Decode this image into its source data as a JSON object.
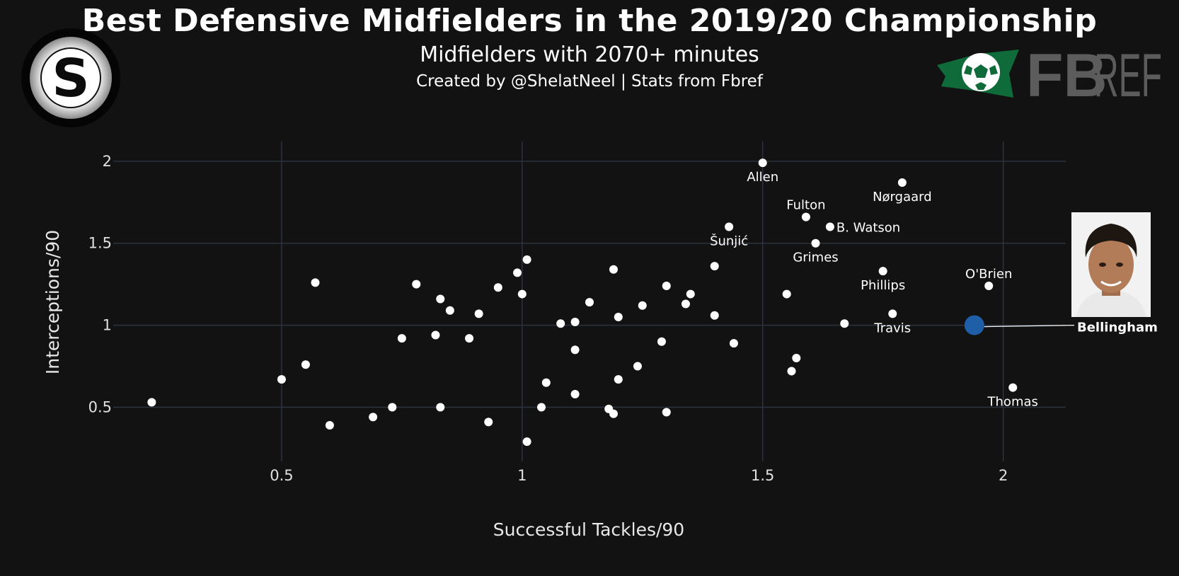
{
  "header": {
    "title": "Best Defensive Midfielders in the 2019/20 Championship",
    "subtitle": "Midfielders with 2070+ minutes",
    "credit": "Created by @ShelatNeel | Stats from Fbref"
  },
  "logos": {
    "left": "S",
    "right_fb": "FB",
    "right_ref": "REF"
  },
  "colors": {
    "background": "#121212",
    "grid": "#2b3240",
    "point": "#ffffff",
    "highlight": "#1f5fa8",
    "fbref_green": "#0f6b3a",
    "fbref_gray": "#5c5c5c"
  },
  "chart_data": {
    "type": "scatter",
    "title": "Best Defensive Midfielders in the 2019/20 Championship",
    "xlabel": "Successful Tackles/90",
    "ylabel": "Interceptions/90",
    "xlim": [
      0.15,
      2.13
    ],
    "ylim": [
      0.17,
      2.12
    ],
    "xticks": [
      0.5,
      1,
      1.5,
      2
    ],
    "yticks": [
      0.5,
      1,
      1.5,
      2
    ],
    "xtick_labels": [
      "0.5",
      "1",
      "1.5",
      "2"
    ],
    "ytick_labels": [
      "0.5",
      "1",
      "1.5",
      "2"
    ],
    "grid": true,
    "points": [
      {
        "x": 0.23,
        "y": 0.53
      },
      {
        "x": 0.5,
        "y": 0.67
      },
      {
        "x": 0.55,
        "y": 0.76
      },
      {
        "x": 0.57,
        "y": 1.26
      },
      {
        "x": 0.6,
        "y": 0.39
      },
      {
        "x": 0.69,
        "y": 0.44
      },
      {
        "x": 0.73,
        "y": 0.5
      },
      {
        "x": 0.75,
        "y": 0.92
      },
      {
        "x": 0.78,
        "y": 1.25
      },
      {
        "x": 0.82,
        "y": 0.94
      },
      {
        "x": 0.83,
        "y": 1.16
      },
      {
        "x": 0.83,
        "y": 0.5
      },
      {
        "x": 0.85,
        "y": 1.09
      },
      {
        "x": 0.89,
        "y": 0.92
      },
      {
        "x": 0.91,
        "y": 1.07
      },
      {
        "x": 0.93,
        "y": 0.41
      },
      {
        "x": 0.95,
        "y": 1.23
      },
      {
        "x": 0.99,
        "y": 1.32
      },
      {
        "x": 1.0,
        "y": 1.19
      },
      {
        "x": 1.01,
        "y": 1.4
      },
      {
        "x": 1.01,
        "y": 0.29
      },
      {
        "x": 1.04,
        "y": 0.5
      },
      {
        "x": 1.05,
        "y": 0.65
      },
      {
        "x": 1.08,
        "y": 1.01
      },
      {
        "x": 1.11,
        "y": 1.02
      },
      {
        "x": 1.11,
        "y": 0.85
      },
      {
        "x": 1.11,
        "y": 0.58
      },
      {
        "x": 1.14,
        "y": 1.14
      },
      {
        "x": 1.18,
        "y": 0.49
      },
      {
        "x": 1.19,
        "y": 1.34
      },
      {
        "x": 1.19,
        "y": 0.46
      },
      {
        "x": 1.2,
        "y": 1.05
      },
      {
        "x": 1.2,
        "y": 0.67
      },
      {
        "x": 1.24,
        "y": 0.75
      },
      {
        "x": 1.25,
        "y": 1.12
      },
      {
        "x": 1.29,
        "y": 0.9
      },
      {
        "x": 1.3,
        "y": 1.24
      },
      {
        "x": 1.3,
        "y": 0.47
      },
      {
        "x": 1.34,
        "y": 1.13
      },
      {
        "x": 1.35,
        "y": 1.19
      },
      {
        "x": 1.4,
        "y": 1.36
      },
      {
        "x": 1.4,
        "y": 1.06
      },
      {
        "x": 1.43,
        "y": 1.6,
        "name": "Šunjić",
        "pos": "below"
      },
      {
        "x": 1.44,
        "y": 0.89
      },
      {
        "x": 1.5,
        "y": 1.99,
        "name": "Allen",
        "pos": "below"
      },
      {
        "x": 1.55,
        "y": 1.19
      },
      {
        "x": 1.56,
        "y": 0.72
      },
      {
        "x": 1.57,
        "y": 0.8
      },
      {
        "x": 1.59,
        "y": 1.66,
        "name": "Fulton",
        "pos": "above"
      },
      {
        "x": 1.61,
        "y": 1.5,
        "name": "Grimes",
        "pos": "below"
      },
      {
        "x": 1.64,
        "y": 1.6,
        "name": "B. Watson",
        "pos": "right"
      },
      {
        "x": 1.67,
        "y": 1.01
      },
      {
        "x": 1.75,
        "y": 1.33,
        "name": "Phillips",
        "pos": "below"
      },
      {
        "x": 1.77,
        "y": 1.07,
        "name": "Travis",
        "pos": "below"
      },
      {
        "x": 1.79,
        "y": 1.87,
        "name": "Nørgaard",
        "pos": "below"
      },
      {
        "x": 1.97,
        "y": 1.24,
        "name": "O'Brien",
        "pos": "above"
      },
      {
        "x": 2.02,
        "y": 0.62,
        "name": "Thomas",
        "pos": "below"
      }
    ],
    "highlight": {
      "x": 1.94,
      "y": 1.0,
      "name": "Bellingham"
    }
  }
}
